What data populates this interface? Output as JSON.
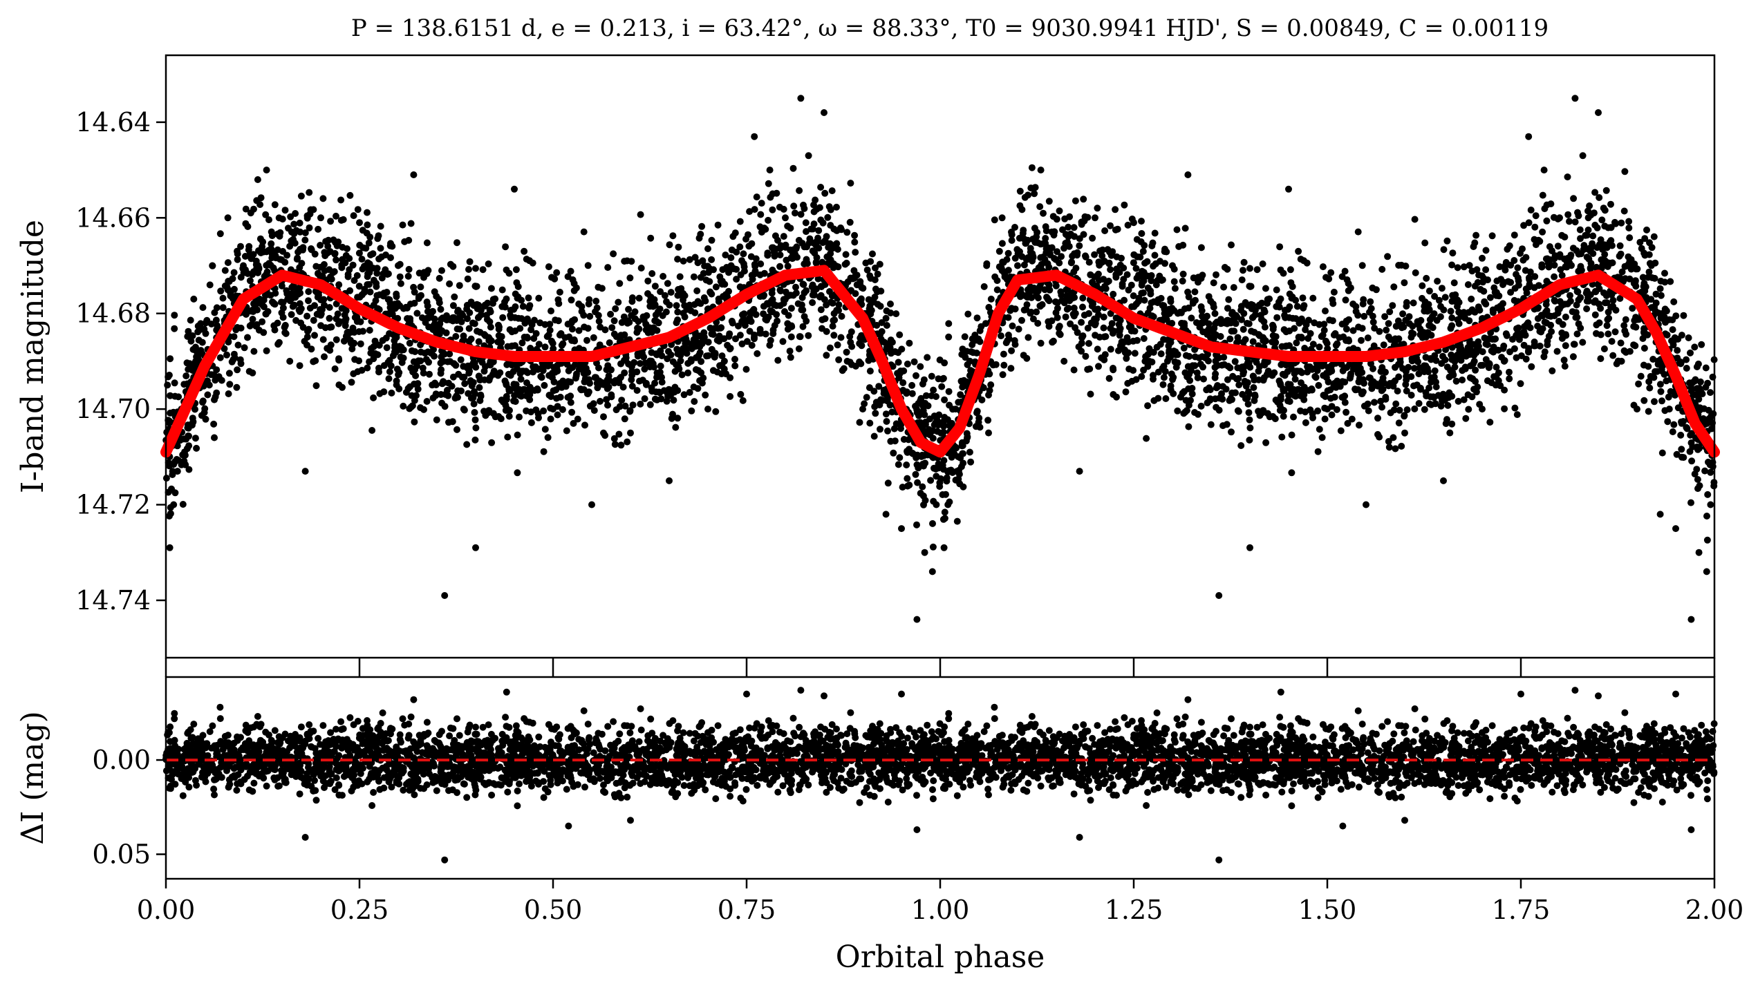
{
  "figure": {
    "title": "P = 138.6151 d, e = 0.213, i = 63.42°, ω = 88.33°, T0 = 9030.9941 HJD', S = 0.00849, C = 0.00119",
    "xlabel": "Orbital phase",
    "top_ylabel": "I-band magnitude",
    "bottom_ylabel": "ΔI (mag)"
  },
  "chart_data": [
    {
      "panel": "light-curve",
      "type": "scatter",
      "title": "P = 138.6151 d, e = 0.213, i = 63.42°, ω = 88.33°, T0 = 9030.9941 HJD', S = 0.00849, C = 0.00119",
      "xlabel": "",
      "ylabel": "I-band magnitude",
      "xlim": [
        0.0,
        2.0
      ],
      "ylim": [
        14.752,
        14.626
      ],
      "y_inverted": true,
      "yticks": [
        14.64,
        14.66,
        14.68,
        14.7,
        14.72,
        14.74
      ],
      "ytick_labels": [
        "14.64",
        "14.66",
        "14.68",
        "14.70",
        "14.72",
        "14.74"
      ],
      "xticks": [
        0.0,
        0.25,
        0.5,
        0.75,
        1.0,
        1.25,
        1.5,
        1.75,
        2.0
      ],
      "grid": false,
      "series": [
        {
          "kind": "points",
          "color": "#000000",
          "repeat_period": 1.0,
          "x": [
            0.005,
            0.01,
            0.015,
            0.02,
            0.03,
            0.04,
            0.06,
            0.08,
            0.1,
            0.13,
            0.16,
            0.18,
            0.2,
            0.25,
            0.3,
            0.32,
            0.36,
            0.4,
            0.45,
            0.5,
            0.55,
            0.6,
            0.65,
            0.7,
            0.73,
            0.76,
            0.78,
            0.8,
            0.82,
            0.83,
            0.85,
            0.88,
            0.9,
            0.93,
            0.95,
            0.97,
            0.98,
            0.99,
            0.995
          ],
          "y": [
            14.729,
            14.72,
            14.713,
            14.7,
            14.695,
            14.688,
            14.67,
            14.66,
            14.67,
            14.65,
            14.69,
            14.713,
            14.66,
            14.661,
            14.67,
            14.651,
            14.739,
            14.729,
            14.654,
            14.7,
            14.72,
            14.705,
            14.715,
            14.7,
            14.67,
            14.643,
            14.65,
            14.66,
            14.635,
            14.647,
            14.638,
            14.69,
            14.7,
            14.722,
            14.725,
            14.744,
            14.73,
            14.734,
            14.72
          ]
        },
        {
          "kind": "model",
          "name": "",
          "color": "#ff0000",
          "x": [
            0.0,
            0.05,
            0.1,
            0.15,
            0.2,
            0.25,
            0.3,
            0.35,
            0.4,
            0.45,
            0.5,
            0.55,
            0.6,
            0.65,
            0.7,
            0.75,
            0.8,
            0.85,
            0.9,
            0.925,
            0.95,
            0.975,
            1.0,
            1.025,
            1.05,
            1.075,
            1.1,
            1.15,
            1.2,
            1.25,
            1.3,
            1.35,
            1.4,
            1.45,
            1.5,
            1.55,
            1.6,
            1.65,
            1.7,
            1.75,
            1.8,
            1.85,
            1.9,
            1.925,
            1.95,
            1.975,
            2.0
          ],
          "y": [
            14.709,
            14.691,
            14.677,
            14.672,
            14.674,
            14.679,
            14.683,
            14.686,
            14.688,
            14.689,
            14.689,
            14.689,
            14.687,
            14.685,
            14.681,
            14.676,
            14.672,
            14.671,
            14.681,
            14.69,
            14.7,
            14.707,
            14.709,
            14.704,
            14.693,
            14.68,
            14.673,
            14.672,
            14.676,
            14.681,
            14.684,
            14.687,
            14.688,
            14.689,
            14.689,
            14.689,
            14.688,
            14.686,
            14.683,
            14.679,
            14.674,
            14.672,
            14.677,
            14.684,
            14.693,
            14.703,
            14.709
          ]
        }
      ]
    },
    {
      "panel": "residuals",
      "type": "scatter",
      "xlabel": "Orbital phase",
      "ylabel": "ΔI (mag)",
      "xlim": [
        0.0,
        2.0
      ],
      "ylim": [
        0.063,
        -0.044
      ],
      "y_inverted": true,
      "yticks": [
        0.0,
        0.05
      ],
      "ytick_labels": [
        "0.00",
        "0.05"
      ],
      "xticks": [
        0.0,
        0.25,
        0.5,
        0.75,
        1.0,
        1.25,
        1.5,
        1.75,
        2.0
      ],
      "xtick_labels": [
        "0.00",
        "0.25",
        "0.50",
        "0.75",
        "1.00",
        "1.25",
        "1.50",
        "1.75",
        "2.00"
      ],
      "grid": false,
      "zero_line": {
        "y": 0.0,
        "color": "#e01010",
        "style": "dashed"
      },
      "series": [
        {
          "kind": "points",
          "color": "#000000",
          "repeat_period": 1.0,
          "x": [
            0.07,
            0.18,
            0.32,
            0.36,
            0.44,
            0.52,
            0.75,
            0.82,
            0.85,
            0.95,
            0.97,
            0.6,
            0.28
          ],
          "y": [
            -0.028,
            0.041,
            -0.032,
            0.053,
            -0.036,
            0.035,
            -0.035,
            -0.037,
            -0.034,
            -0.035,
            0.037,
            0.032,
            -0.025
          ]
        }
      ]
    }
  ]
}
